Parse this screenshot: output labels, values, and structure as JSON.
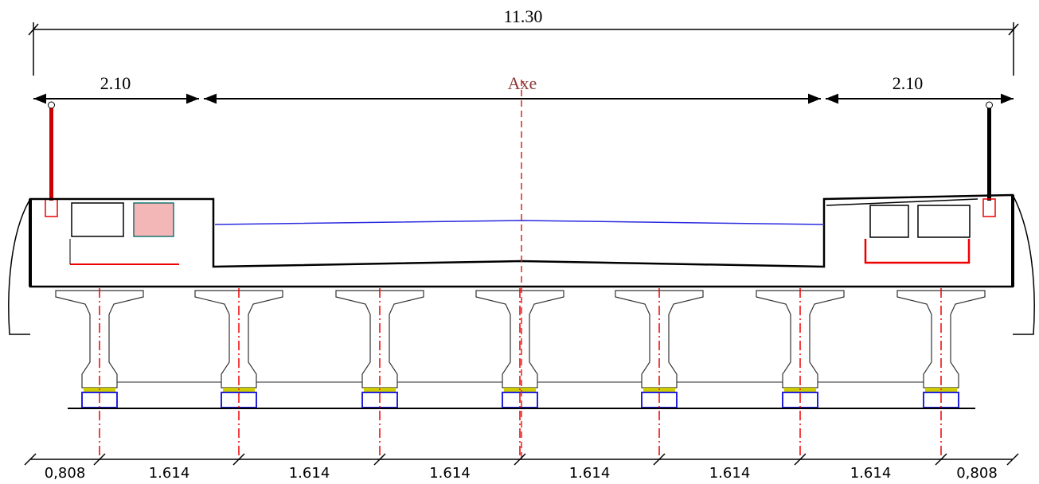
{
  "dimensions": {
    "overall": "11.30",
    "left_cantilever": "2.10",
    "axis_label": "Axe",
    "right_cantilever": "2.10",
    "spacings": [
      "0,808",
      "1.614",
      "1.614",
      "1.614",
      "1.614",
      "1.614",
      "1.614",
      "0,808"
    ]
  }
}
